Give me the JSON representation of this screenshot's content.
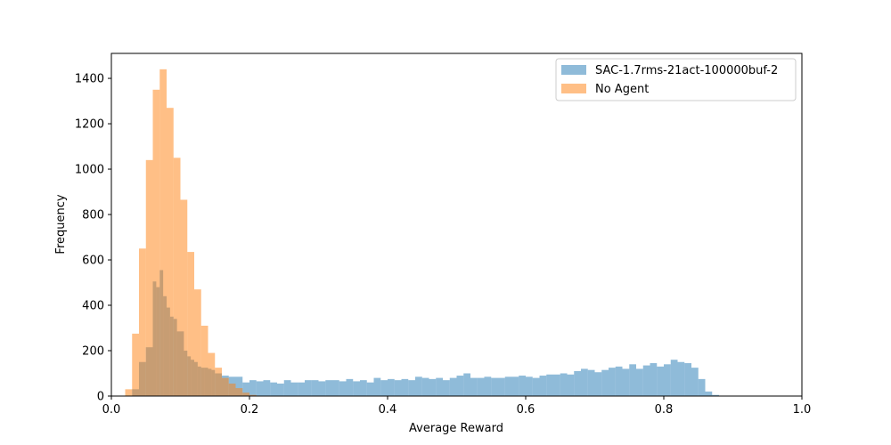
{
  "chart_data": {
    "type": "bar",
    "subtype": "overlapping-histogram",
    "xlabel": "Average Reward",
    "ylabel": "Frequency",
    "xlim": [
      0.0,
      1.0
    ],
    "ylim": [
      0,
      1510
    ],
    "xticks": [
      "0.0",
      "0.2",
      "0.4",
      "0.6",
      "0.8",
      "1.0"
    ],
    "yticks": [
      "0",
      "200",
      "400",
      "600",
      "800",
      "1000",
      "1200",
      "1400"
    ],
    "grid": false,
    "legend_position": "top-right",
    "series": [
      {
        "name": "SAC-1.7rms-21act-100000buf-2",
        "color": "#1f77b4",
        "opacity": 0.5,
        "bins": [
          [
            0.03,
            0.04,
            30
          ],
          [
            0.04,
            0.05,
            150
          ],
          [
            0.05,
            0.06,
            215
          ],
          [
            0.06,
            0.065,
            505
          ],
          [
            0.065,
            0.07,
            480
          ],
          [
            0.07,
            0.075,
            555
          ],
          [
            0.075,
            0.08,
            440
          ],
          [
            0.08,
            0.085,
            390
          ],
          [
            0.085,
            0.09,
            350
          ],
          [
            0.09,
            0.095,
            340
          ],
          [
            0.095,
            0.1,
            285
          ],
          [
            0.1,
            0.105,
            285
          ],
          [
            0.105,
            0.11,
            200
          ],
          [
            0.11,
            0.115,
            175
          ],
          [
            0.115,
            0.12,
            160
          ],
          [
            0.12,
            0.125,
            150
          ],
          [
            0.125,
            0.13,
            130
          ],
          [
            0.13,
            0.135,
            125
          ],
          [
            0.135,
            0.14,
            125
          ],
          [
            0.14,
            0.145,
            120
          ],
          [
            0.145,
            0.15,
            115
          ],
          [
            0.15,
            0.16,
            100
          ],
          [
            0.16,
            0.17,
            90
          ],
          [
            0.17,
            0.18,
            85
          ],
          [
            0.18,
            0.19,
            85
          ],
          [
            0.19,
            0.2,
            60
          ],
          [
            0.2,
            0.21,
            70
          ],
          [
            0.21,
            0.22,
            65
          ],
          [
            0.22,
            0.23,
            70
          ],
          [
            0.23,
            0.24,
            60
          ],
          [
            0.24,
            0.25,
            55
          ],
          [
            0.25,
            0.26,
            70
          ],
          [
            0.26,
            0.27,
            60
          ],
          [
            0.27,
            0.28,
            60
          ],
          [
            0.28,
            0.29,
            70
          ],
          [
            0.29,
            0.3,
            70
          ],
          [
            0.3,
            0.31,
            65
          ],
          [
            0.31,
            0.32,
            70
          ],
          [
            0.32,
            0.33,
            70
          ],
          [
            0.33,
            0.34,
            65
          ],
          [
            0.34,
            0.35,
            75
          ],
          [
            0.35,
            0.36,
            65
          ],
          [
            0.36,
            0.37,
            70
          ],
          [
            0.37,
            0.38,
            60
          ],
          [
            0.38,
            0.39,
            80
          ],
          [
            0.39,
            0.4,
            70
          ],
          [
            0.4,
            0.41,
            75
          ],
          [
            0.41,
            0.42,
            70
          ],
          [
            0.42,
            0.43,
            75
          ],
          [
            0.43,
            0.44,
            70
          ],
          [
            0.44,
            0.45,
            85
          ],
          [
            0.45,
            0.46,
            80
          ],
          [
            0.46,
            0.47,
            75
          ],
          [
            0.47,
            0.48,
            80
          ],
          [
            0.48,
            0.49,
            70
          ],
          [
            0.49,
            0.5,
            80
          ],
          [
            0.5,
            0.51,
            90
          ],
          [
            0.51,
            0.52,
            100
          ],
          [
            0.52,
            0.53,
            80
          ],
          [
            0.53,
            0.54,
            80
          ],
          [
            0.54,
            0.55,
            85
          ],
          [
            0.55,
            0.56,
            80
          ],
          [
            0.56,
            0.57,
            80
          ],
          [
            0.57,
            0.58,
            85
          ],
          [
            0.58,
            0.59,
            85
          ],
          [
            0.59,
            0.6,
            90
          ],
          [
            0.6,
            0.61,
            85
          ],
          [
            0.61,
            0.62,
            80
          ],
          [
            0.62,
            0.63,
            90
          ],
          [
            0.63,
            0.64,
            95
          ],
          [
            0.64,
            0.65,
            95
          ],
          [
            0.65,
            0.66,
            100
          ],
          [
            0.66,
            0.67,
            95
          ],
          [
            0.67,
            0.68,
            110
          ],
          [
            0.68,
            0.69,
            120
          ],
          [
            0.69,
            0.7,
            115
          ],
          [
            0.7,
            0.71,
            105
          ],
          [
            0.71,
            0.72,
            115
          ],
          [
            0.72,
            0.73,
            125
          ],
          [
            0.73,
            0.74,
            130
          ],
          [
            0.74,
            0.75,
            120
          ],
          [
            0.75,
            0.76,
            140
          ],
          [
            0.76,
            0.77,
            120
          ],
          [
            0.77,
            0.78,
            135
          ],
          [
            0.78,
            0.79,
            145
          ],
          [
            0.79,
            0.8,
            130
          ],
          [
            0.8,
            0.81,
            140
          ],
          [
            0.81,
            0.82,
            160
          ],
          [
            0.82,
            0.83,
            150
          ],
          [
            0.83,
            0.84,
            145
          ],
          [
            0.84,
            0.85,
            125
          ],
          [
            0.85,
            0.86,
            75
          ],
          [
            0.86,
            0.87,
            20
          ],
          [
            0.87,
            0.88,
            5
          ]
        ]
      },
      {
        "name": "No Agent",
        "color": "#ff7f0e",
        "opacity": 0.5,
        "bins": [
          [
            0.02,
            0.03,
            30
          ],
          [
            0.03,
            0.04,
            275
          ],
          [
            0.04,
            0.05,
            650
          ],
          [
            0.05,
            0.06,
            1040
          ],
          [
            0.06,
            0.07,
            1350
          ],
          [
            0.07,
            0.08,
            1440
          ],
          [
            0.08,
            0.09,
            1270
          ],
          [
            0.09,
            0.1,
            1050
          ],
          [
            0.1,
            0.11,
            865
          ],
          [
            0.11,
            0.12,
            635
          ],
          [
            0.12,
            0.13,
            470
          ],
          [
            0.13,
            0.14,
            310
          ],
          [
            0.14,
            0.15,
            190
          ],
          [
            0.15,
            0.16,
            125
          ],
          [
            0.16,
            0.17,
            80
          ],
          [
            0.17,
            0.18,
            55
          ],
          [
            0.18,
            0.19,
            35
          ],
          [
            0.19,
            0.2,
            15
          ],
          [
            0.2,
            0.21,
            5
          ]
        ]
      }
    ]
  }
}
